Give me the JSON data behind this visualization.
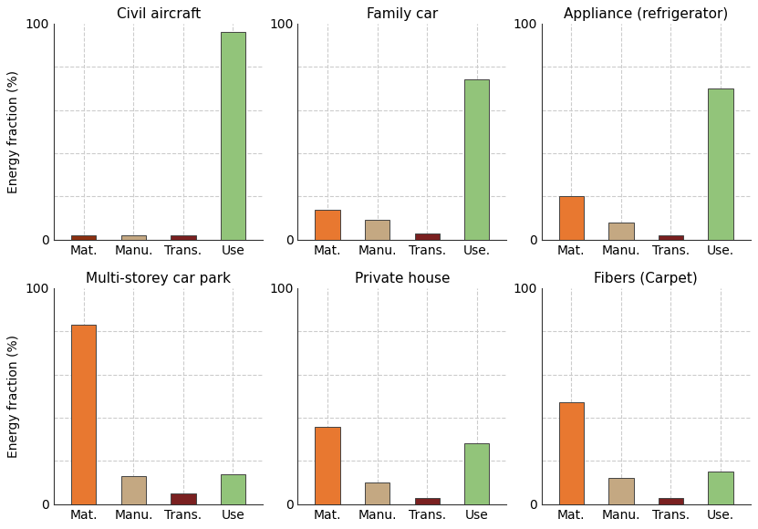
{
  "subplots": [
    {
      "title": "Civil aircraft",
      "categories": [
        "Mat.",
        "Manu.",
        "Trans.",
        "Use"
      ],
      "values": [
        2,
        2,
        2,
        96
      ],
      "colors": [
        "#8B3010",
        "#C4A882",
        "#7A2020",
        "#92C47A"
      ],
      "ylim": [
        0,
        100
      ],
      "ylabel": true
    },
    {
      "title": "Family car",
      "categories": [
        "Mat.",
        "Manu.",
        "Trans.",
        "Use."
      ],
      "values": [
        14,
        9,
        3,
        74
      ],
      "colors": [
        "#E87830",
        "#C4A882",
        "#7A2020",
        "#92C47A"
      ],
      "ylim": [
        0,
        100
      ],
      "ylabel": false
    },
    {
      "title": "Appliance (refrigerator)",
      "categories": [
        "Mat.",
        "Manu.",
        "Trans.",
        "Use."
      ],
      "values": [
        20,
        8,
        2,
        70
      ],
      "colors": [
        "#E87830",
        "#C4A882",
        "#7A2020",
        "#92C47A"
      ],
      "ylim": [
        0,
        100
      ],
      "ylabel": false
    },
    {
      "title": "Multi-storey car park",
      "categories": [
        "Mat.",
        "Manu.",
        "Trans.",
        "Use"
      ],
      "values": [
        83,
        13,
        5,
        14
      ],
      "colors": [
        "#E87830",
        "#C4A882",
        "#7A2020",
        "#92C47A"
      ],
      "ylim": [
        0,
        100
      ],
      "ylabel": true
    },
    {
      "title": "Private house",
      "categories": [
        "Mat.",
        "Manu.",
        "Trans.",
        "Use"
      ],
      "values": [
        36,
        10,
        3,
        28
      ],
      "colors": [
        "#E87830",
        "#C4A882",
        "#7A2020",
        "#92C47A"
      ],
      "ylim": [
        0,
        100
      ],
      "ylabel": false
    },
    {
      "title": "Fibers (Carpet)",
      "categories": [
        "Mat.",
        "Manu.",
        "Trans.",
        "Use."
      ],
      "values": [
        47,
        12,
        3,
        15
      ],
      "colors": [
        "#E87830",
        "#C4A882",
        "#7A2020",
        "#92C47A"
      ],
      "ylim": [
        0,
        100
      ],
      "ylabel": false
    }
  ],
  "fig_bg": "#FFFFFF",
  "grid_color": "#CCCCCC",
  "title_fontsize": 11,
  "tick_fontsize": 10,
  "ylabel_text": "Energy fraction (%)",
  "ylabel_fontsize": 10,
  "yticks_shown": [
    0,
    100
  ],
  "grid_yticks": [
    20,
    40,
    60,
    80
  ],
  "bar_width": 0.5
}
